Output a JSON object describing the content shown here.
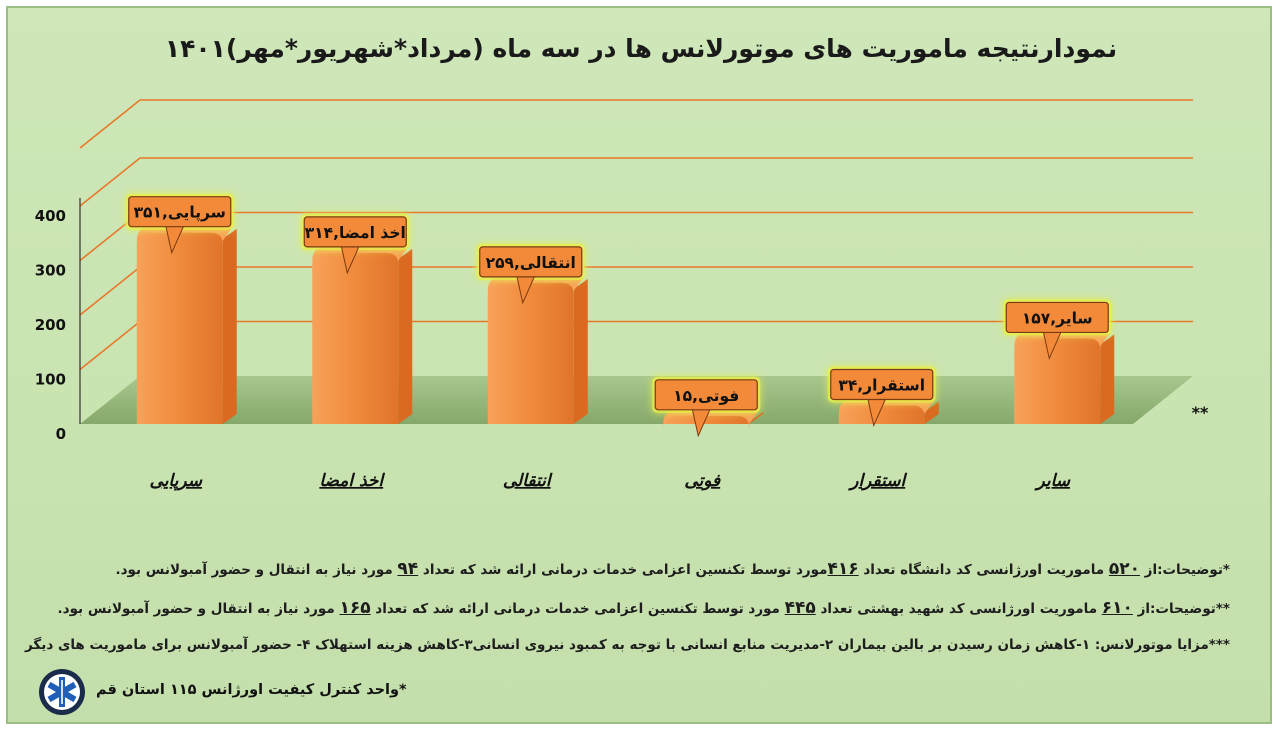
{
  "title": "نمودارنتیجه ماموریت های موتورلانس ها در سه ماه (مرداد*شهریور*مهر)۱۴۰۱",
  "chart_data": {
    "type": "bar",
    "title": "نمودارنتیجه ماموریت های موتورلانس ها در سه ماه (مرداد*شهریور*مهر)۱۴۰۱",
    "categories": [
      "سرپایی",
      "اخذ امضا",
      "انتقالی",
      "فوتی",
      "استقرار",
      "سایر"
    ],
    "values": [
      351,
      314,
      259,
      15,
      34,
      157
    ],
    "data_labels": [
      "سرپایی,۳۵۱",
      "اخذ امضا,۳۱۴",
      "انتقالی,۲۵۹",
      "فوتی,۱۵",
      "استقرار,۳۴",
      "سایر,۱۵۷"
    ],
    "yticks": [
      "0",
      "100",
      "200",
      "300",
      "400"
    ],
    "ytick_values": [
      0,
      100,
      200,
      300,
      400
    ],
    "ylim": [
      0,
      400
    ],
    "grid": true,
    "annotation": "**",
    "xlabel": "",
    "ylabel": ""
  },
  "notes": {
    "line1": {
      "a": "*توضیحات:از ",
      "n1": "۵۲۰",
      "b": " ماموریت اورژانسی کد دانشگاه تعداد ",
      "n2": "۴۱۶",
      "c": "مورد توسط تکنسین اعزامی خدمات درمانی ارائه شد که تعداد ",
      "n3": "۹۴",
      "d": " مورد نیاز به انتقال و حضور آمبولانس بود."
    },
    "line2": {
      "a": "**توضیحات:از ",
      "n1": "۶۱۰",
      "b": " ماموریت اورژانسی کد شهید بهشتی تعداد ",
      "n2": "۴۴۵",
      "c": " مورد توسط تکنسین اعزامی خدمات درمانی ارائه شد که تعداد ",
      "n3": "۱۶۵",
      "d": " مورد نیاز به انتقال و حضور آمبولانس بود."
    },
    "line3": "***مزایا موتورلانس: ۱-کاهش زمان رسیدن بر بالین بیماران ۲-مدیریت منابع انسانی با توجه به کمبود نیروی انسانی۳-کاهش هزینه استهلاک ۴- حضور آمبولانس برای ماموریت های دیگر"
  },
  "footer": "*واحد کنترل کیفیت اورژانس ۱۱۵ استان قم",
  "colors": {
    "background": "#c9e3b1",
    "bar_front": "#f08a3c",
    "bar_side": "#d96a20",
    "gridline": "#e8782a",
    "floor": "#8faf74",
    "label_fill": "#f28a3a",
    "label_glow": "#e8f04a"
  }
}
